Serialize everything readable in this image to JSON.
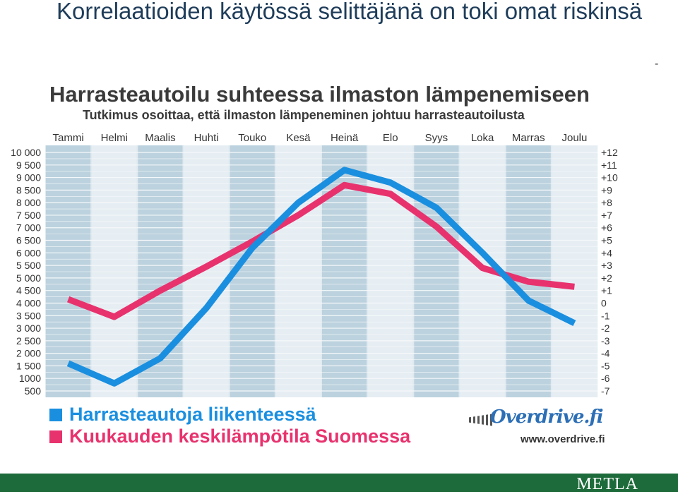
{
  "slide": {
    "title": "Korrelaatioiden käytössä selittäjänä on toki omat riskinsä",
    "dash": "-"
  },
  "chart_data": {
    "type": "line",
    "title": "Harrasteautoilu suhteessa ilmaston lämpenemiseen",
    "subtitle": "Tutkimus osoittaa, että ilmaston lämpeneminen johtuu harrasteautoilusta",
    "categories": [
      "Tammi",
      "Helmi",
      "Maalis",
      "Huhti",
      "Touko",
      "Kesä",
      "Heinä",
      "Elo",
      "Syys",
      "Loka",
      "Marras",
      "Joulu"
    ],
    "left_axis": {
      "ticks": [
        "10 000",
        "9 500",
        "9 000",
        "8 500",
        "8 000",
        "7 500",
        "7 000",
        "6 500",
        "6 000",
        "5 500",
        "5 000",
        "4 500",
        "4 000",
        "3 500",
        "3 000",
        "2 500",
        "2 000",
        "1 500",
        "1000",
        "500"
      ],
      "ylim": [
        500,
        10000
      ]
    },
    "right_axis": {
      "ticks": [
        "+12",
        "+11",
        "+10",
        "+9",
        "+8",
        "+7",
        "+6",
        "+5",
        "+4",
        "+3",
        "+2",
        "+1",
        "0",
        "-1",
        "-2",
        "-3",
        "-4",
        "-5",
        "-6",
        "-7"
      ],
      "ylim": [
        -7,
        12
      ]
    },
    "series": [
      {
        "name": "Harrasteautoja liikenteessä",
        "axis": "left",
        "color": "#1a8fe0",
        "values": [
          1600,
          800,
          1800,
          3800,
          6200,
          8000,
          9300,
          8800,
          7800,
          6000,
          4100,
          3200
        ]
      },
      {
        "name": "Kuukauden keskilämpötila Suomessa",
        "axis": "right",
        "color": "#e8326e",
        "values": [
          0.3,
          -1.1,
          1.0,
          2.9,
          4.9,
          7.0,
          9.4,
          8.7,
          6.1,
          2.8,
          1.7,
          1.3
        ]
      }
    ],
    "grid": true,
    "legend_position": "bottom-left"
  },
  "branding": {
    "logo_text": "Overdrive.fi",
    "url": "www.overdrive.fi",
    "footer_brand": "METLA",
    "footer_color": "#1d6b3a"
  }
}
